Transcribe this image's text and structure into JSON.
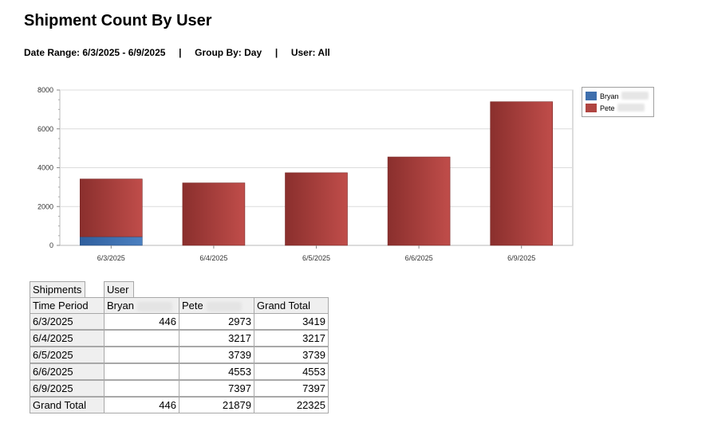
{
  "report": {
    "title": "Shipment Count By User",
    "subtitle": "Date Range: 6/3/2025 - 6/9/2025     |     Group By: Day     |     User: All"
  },
  "chart_data": {
    "type": "bar",
    "stacked": true,
    "categories": [
      "6/3/2025",
      "6/4/2025",
      "6/5/2025",
      "6/6/2025",
      "6/9/2025"
    ],
    "series": [
      {
        "name": "Bryan",
        "values": [
          446,
          0,
          0,
          0,
          0
        ],
        "color": "#3f6fad"
      },
      {
        "name": "Pete",
        "values": [
          2973,
          3217,
          3739,
          4553,
          7397
        ],
        "color": "#a83c3a"
      }
    ],
    "ylim": [
      0,
      8000
    ],
    "yticks": [
      0,
      2000,
      4000,
      6000,
      8000
    ],
    "grid": true,
    "legend": "top-right",
    "title": "",
    "xlabel": "",
    "ylabel": ""
  },
  "pivot": {
    "data_field": "Shipments",
    "column_field": "User",
    "row_field": "Time Period",
    "columns": [
      "Bryan",
      "Pete",
      "Grand Total"
    ],
    "rows": [
      {
        "period": "6/3/2025",
        "bryan": "446",
        "pete": "2973",
        "total": "3419"
      },
      {
        "period": "6/4/2025",
        "bryan": "",
        "pete": "3217",
        "total": "3217"
      },
      {
        "period": "6/5/2025",
        "bryan": "",
        "pete": "3739",
        "total": "3739"
      },
      {
        "period": "6/6/2025",
        "bryan": "",
        "pete": "4553",
        "total": "4553"
      },
      {
        "period": "6/9/2025",
        "bryan": "",
        "pete": "7397",
        "total": "7397"
      }
    ],
    "grand_total": {
      "label": "Grand Total",
      "bryan": "446",
      "pete": "21879",
      "total": "22325"
    }
  }
}
